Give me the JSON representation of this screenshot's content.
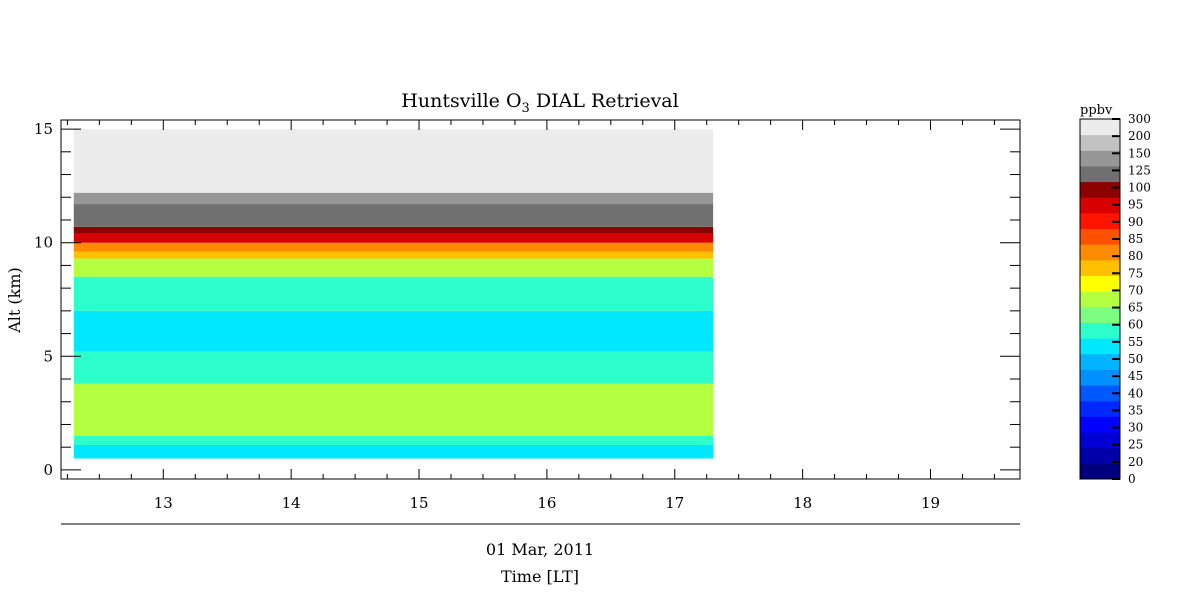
{
  "chart_data": {
    "type": "heatmap",
    "title_main": "Huntsville O",
    "title_sub": "3",
    "title_rest": " DIAL Retrieval",
    "ylabel": "Alt (km)",
    "date_label": "01 Mar, 2011",
    "xlabel": "Time [LT]",
    "xlim": [
      12.2,
      19.7
    ],
    "ylim": [
      -0.4,
      15.4
    ],
    "xticks": [
      13,
      14,
      15,
      16,
      17,
      18,
      19
    ],
    "yticks": [
      0,
      5,
      10,
      15
    ],
    "data_x_range": [
      12.3,
      17.3
    ],
    "data_y_range": [
      0.5,
      15
    ],
    "colorbar": {
      "title": "ppbv",
      "levels": [
        "0",
        "20",
        "25",
        "30",
        "35",
        "40",
        "45",
        "50",
        "55",
        "60",
        "65",
        "70",
        "75",
        "80",
        "85",
        "90",
        "95",
        "100",
        "125",
        "150",
        "200",
        "300"
      ],
      "colors": [
        "#00007f",
        "#0000a8",
        "#0000d4",
        "#0000ff",
        "#0028ff",
        "#0058ff",
        "#0090ff",
        "#00b4ff",
        "#00e8ff",
        "#2cffcc",
        "#7cff80",
        "#b4ff40",
        "#ffff00",
        "#ffc000",
        "#ff8c00",
        "#ff5000",
        "#ff1400",
        "#d80000",
        "#8c0000",
        "#707070",
        "#969696",
        "#c2c2c2",
        "#ececec"
      ]
    },
    "profile_layers": [
      {
        "top": 1.1,
        "value": 50
      },
      {
        "top": 1.5,
        "value": 55
      },
      {
        "top": 3.8,
        "value": 65
      },
      {
        "top": 5.2,
        "value": 55
      },
      {
        "top": 7.0,
        "value": 50
      },
      {
        "top": 8.5,
        "value": 55
      },
      {
        "top": 9.3,
        "value": 65
      },
      {
        "top": 9.6,
        "value": 75
      },
      {
        "top": 10.0,
        "value": 80
      },
      {
        "top": 10.4,
        "value": 95
      },
      {
        "top": 10.7,
        "value": 100
      },
      {
        "top": 11.7,
        "value": 125
      },
      {
        "top": 12.2,
        "value": 150
      },
      {
        "top": 15.0,
        "value": 300
      }
    ]
  }
}
